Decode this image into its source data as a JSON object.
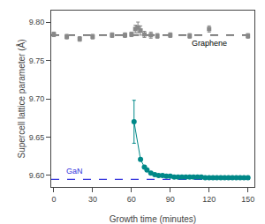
{
  "chart_data": {
    "type": "scatter",
    "xlabel": "Growth time (minutes)",
    "ylabel": "Supercell lattice parameter (Å)",
    "xlim": [
      -2,
      155
    ],
    "ylim": [
      9.585,
      9.815
    ],
    "xticks": [
      0,
      30,
      60,
      90,
      120,
      150
    ],
    "yticks": [
      {
        "value": 9.6,
        "label": "9.60"
      },
      9.65,
      {
        "value": 9.7,
        "label": "9.70"
      },
      9.75,
      {
        "value": 9.8,
        "label": "9.80"
      }
    ],
    "grid": false,
    "series": [
      {
        "type": "scatter",
        "marker": "square",
        "color": "#888888",
        "x": [
          0,
          10,
          20,
          30,
          45,
          55,
          60,
          63,
          65,
          67,
          70,
          75,
          80,
          90,
          105,
          120,
          150
        ],
        "values": [
          9.784,
          9.781,
          9.778,
          9.781,
          9.783,
          9.783,
          9.784,
          9.791,
          9.793,
          9.789,
          9.784,
          9.783,
          9.782,
          9.783,
          9.782,
          9.791,
          9.782
        ],
        "error": [
          0.003,
          0.003,
          0.003,
          0.003,
          0.003,
          0.003,
          0.003,
          0.005,
          0.007,
          0.006,
          0.004,
          0.004,
          0.003,
          0.003,
          0.003,
          0.004,
          0.003
        ]
      },
      {
        "type": "line",
        "marker": "circle",
        "color": "#008888",
        "x": [
          62,
          67,
          70,
          72,
          75,
          78,
          81,
          84,
          87,
          90,
          93,
          96,
          99,
          102,
          105,
          108,
          111,
          114,
          117,
          120,
          123,
          126,
          129,
          132,
          135,
          138,
          141,
          144,
          147,
          150
        ],
        "values": [
          9.67,
          9.621,
          9.611,
          9.607,
          9.603,
          9.601,
          9.6,
          9.6,
          9.599,
          9.599,
          9.598,
          9.598,
          9.598,
          9.598,
          9.598,
          9.598,
          9.598,
          9.598,
          9.597,
          9.597,
          9.597,
          9.597,
          9.597,
          9.597,
          9.597,
          9.597,
          9.597,
          9.597,
          9.597,
          9.597
        ],
        "error": [
          0.028,
          null,
          null,
          null,
          null,
          null,
          null,
          null,
          null,
          null,
          null,
          null,
          null,
          null,
          null,
          null,
          null,
          null,
          null,
          null,
          null,
          null,
          null,
          null,
          null,
          null,
          null,
          null,
          null,
          null
        ]
      }
    ],
    "hlines": [
      {
        "value": 9.783,
        "color": "#333333",
        "line_style": "dashed"
      },
      {
        "value": 9.595,
        "color": "#3333dd",
        "line_style": "dashed"
      }
    ],
    "annotations": [
      {
        "text": "Graphene",
        "x": 105,
        "y": 9.78,
        "color": "black"
      },
      {
        "text": "GaN",
        "x": 8,
        "y": 9.598,
        "color": "#3333dd"
      }
    ]
  }
}
